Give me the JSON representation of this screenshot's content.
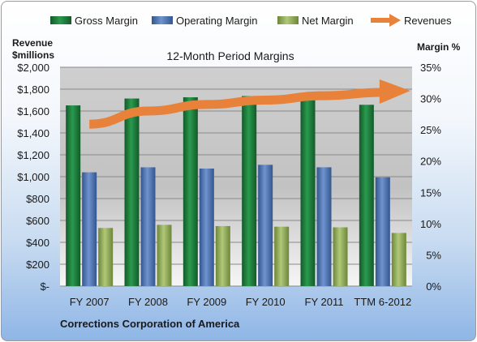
{
  "chart_data": {
    "type": "bar",
    "title": "12-Month Period Margins",
    "company": "Corrections Corporation of America",
    "ylabel_left": [
      "Revenue",
      "$millions"
    ],
    "ylabel_right": "Margin %",
    "categories": [
      "FY 2007",
      "FY 2008",
      "FY 2009",
      "FY 2010",
      "FY 2011",
      "TTM 6-2012"
    ],
    "ylim_left": [
      0,
      2000
    ],
    "ylim_right": [
      0,
      35
    ],
    "left_ticks": [
      "$-",
      "$200",
      "$400",
      "$600",
      "$800",
      "$1,000",
      "$1,200",
      "$1,400",
      "$1,600",
      "$1,800",
      "$2,000"
    ],
    "right_ticks": [
      "0%",
      "5%",
      "10%",
      "15%",
      "20%",
      "25%",
      "30%",
      "35%"
    ],
    "grid": true,
    "legend_position": "top",
    "series": [
      {
        "name": "Gross Margin",
        "axis": "right",
        "color": "#1f7a3c",
        "values": [
          28.9,
          30.0,
          30.2,
          30.4,
          30.5,
          29.0
        ]
      },
      {
        "name": "Operating Margin",
        "axis": "right",
        "color": "#4a6fb0",
        "values": [
          18.2,
          19.0,
          18.8,
          19.4,
          19.0,
          17.4
        ]
      },
      {
        "name": "Net Margin",
        "axis": "right",
        "color": "#8faa4f",
        "values": [
          9.3,
          9.8,
          9.6,
          9.5,
          9.4,
          8.5
        ]
      },
      {
        "name": "Revenues",
        "axis": "left",
        "type": "arrow",
        "color": "#e8823a",
        "values": [
          1480,
          1600,
          1660,
          1700,
          1740,
          1770
        ]
      }
    ]
  }
}
